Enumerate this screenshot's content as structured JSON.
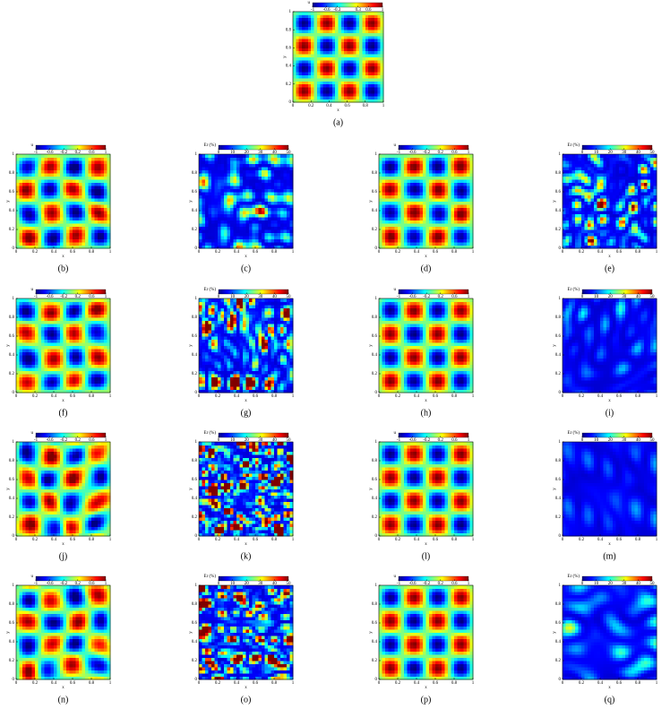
{
  "chart_data": [
    {
      "type": "heatmap",
      "label": "(a)",
      "colorbar_label": "u",
      "clim": [
        -1,
        1
      ],
      "cticks": [
        -1,
        -0.6,
        -0.3,
        0.3,
        0.6,
        1
      ],
      "xlabel": "x",
      "ylabel": "y",
      "xlim": [
        0,
        1
      ],
      "ylim": [
        0,
        1
      ],
      "xticks": [
        0,
        0.2,
        0.4,
        0.6,
        0.8,
        1
      ],
      "yticks": [
        0,
        0.2,
        0.4,
        0.6,
        0.8,
        1
      ]
    },
    {
      "type": "heatmap",
      "label": "(b)",
      "colorbar_label": "u",
      "clim": [
        -1,
        1
      ],
      "cticks": [
        -1,
        -0.6,
        -0.2,
        0.2,
        0.6,
        1
      ],
      "xlabel": "x",
      "ylabel": "y",
      "xlim": [
        0,
        1
      ],
      "ylim": [
        0,
        1
      ],
      "xticks": [
        0,
        0.2,
        0.4,
        0.6,
        0.8,
        1
      ],
      "yticks": [
        0,
        0.2,
        0.4,
        0.6,
        0.8,
        1
      ]
    },
    {
      "type": "heatmap",
      "label": "(c)",
      "colorbar_label": "Er (%)",
      "clim": [
        0,
        50
      ],
      "cticks": [
        0,
        10,
        20,
        30,
        40,
        50
      ],
      "xlabel": "x",
      "ylabel": "y",
      "xlim": [
        0,
        1
      ],
      "ylim": [
        0,
        1
      ],
      "xticks": [
        0,
        0.2,
        0.4,
        0.6,
        0.8,
        1
      ],
      "yticks": [
        0,
        0.2,
        0.4,
        0.6,
        0.8,
        1
      ]
    },
    {
      "type": "heatmap",
      "label": "(d)",
      "colorbar_label": "u",
      "clim": [
        -1,
        1
      ],
      "cticks": [
        -1,
        -0.6,
        -0.2,
        0.2,
        0.6,
        1
      ],
      "xlabel": "x",
      "ylabel": "y",
      "xlim": [
        0,
        1
      ],
      "ylim": [
        0,
        1
      ],
      "xticks": [
        0,
        0.2,
        0.4,
        0.6,
        0.8,
        1
      ],
      "yticks": [
        0,
        0.2,
        0.4,
        0.6,
        0.8,
        1
      ]
    },
    {
      "type": "heatmap",
      "label": "(e)",
      "colorbar_label": "Er (%)",
      "clim": [
        0,
        50
      ],
      "cticks": [
        0,
        10,
        20,
        30,
        40,
        50
      ],
      "xlabel": "x",
      "ylabel": "y",
      "xlim": [
        0,
        1
      ],
      "ylim": [
        0,
        1
      ],
      "xticks": [
        0,
        0.2,
        0.4,
        0.6,
        0.8,
        1
      ],
      "yticks": [
        0,
        0.2,
        0.4,
        0.6,
        0.8,
        1
      ]
    },
    {
      "type": "heatmap",
      "label": "(f)",
      "colorbar_label": "u",
      "clim": [
        -1,
        1
      ],
      "cticks": [
        -1,
        -0.6,
        -0.2,
        0.2,
        0.6,
        1
      ],
      "xlabel": "x",
      "ylabel": "y",
      "xlim": [
        0,
        1
      ],
      "ylim": [
        0,
        1
      ],
      "xticks": [
        0,
        0.2,
        0.4,
        0.6,
        0.8,
        1
      ],
      "yticks": [
        0,
        0.2,
        0.4,
        0.6,
        0.8,
        1
      ]
    },
    {
      "type": "heatmap",
      "label": "(g)",
      "colorbar_label": "Er (%)",
      "clim": [
        0,
        50
      ],
      "cticks": [
        0,
        10,
        20,
        30,
        40,
        50
      ],
      "xlabel": "x",
      "ylabel": "y",
      "xlim": [
        0,
        1
      ],
      "ylim": [
        0,
        1
      ],
      "xticks": [
        0,
        0.2,
        0.4,
        0.6,
        0.8,
        1
      ],
      "yticks": [
        0,
        0.2,
        0.4,
        0.6,
        0.8,
        1
      ]
    },
    {
      "type": "heatmap",
      "label": "(h)",
      "colorbar_label": "u",
      "clim": [
        -1,
        1
      ],
      "cticks": [
        -1,
        -0.6,
        -0.2,
        0.2,
        0.6,
        1
      ],
      "xlabel": "x",
      "ylabel": "y",
      "xlim": [
        0,
        1
      ],
      "ylim": [
        0,
        1
      ],
      "xticks": [
        0,
        0.2,
        0.4,
        0.6,
        0.8,
        1
      ],
      "yticks": [
        0,
        0.2,
        0.4,
        0.6,
        0.8,
        1
      ]
    },
    {
      "type": "heatmap",
      "label": "(i)",
      "colorbar_label": "Er (%)",
      "clim": [
        0,
        50
      ],
      "cticks": [
        0,
        10,
        20,
        30,
        40,
        50
      ],
      "xlabel": "x",
      "ylabel": "y",
      "xlim": [
        0,
        1
      ],
      "ylim": [
        0,
        1
      ],
      "xticks": [
        0,
        0.2,
        0.4,
        0.6,
        0.8,
        1
      ],
      "yticks": [
        0,
        0.2,
        0.4,
        0.6,
        0.8,
        1
      ]
    },
    {
      "type": "heatmap",
      "label": "(j)",
      "colorbar_label": "u",
      "clim": [
        -1,
        1
      ],
      "cticks": [
        -1,
        -0.6,
        -0.2,
        0.2,
        0.6,
        1
      ],
      "xlabel": "x",
      "ylabel": "y",
      "xlim": [
        0,
        1
      ],
      "ylim": [
        0,
        1
      ],
      "xticks": [
        0,
        0.2,
        0.4,
        0.6,
        0.8,
        1
      ],
      "yticks": [
        0,
        0.2,
        0.4,
        0.6,
        0.8,
        1
      ]
    },
    {
      "type": "heatmap",
      "label": "(k)",
      "colorbar_label": "Er (%)",
      "clim": [
        0,
        50
      ],
      "cticks": [
        0,
        10,
        20,
        30,
        40,
        50
      ],
      "xlabel": "x",
      "ylabel": "y",
      "xlim": [
        0,
        1
      ],
      "ylim": [
        0,
        1
      ],
      "xticks": [
        0,
        0.2,
        0.4,
        0.6,
        0.8,
        1
      ],
      "yticks": [
        0,
        0.2,
        0.4,
        0.6,
        0.8,
        1
      ]
    },
    {
      "type": "heatmap",
      "label": "(l)",
      "colorbar_label": "u",
      "clim": [
        -1,
        1
      ],
      "cticks": [
        -1,
        -0.6,
        -0.2,
        0.2,
        0.6,
        1
      ],
      "xlabel": "x",
      "ylabel": "y",
      "xlim": [
        0,
        1
      ],
      "ylim": [
        0,
        1
      ],
      "xticks": [
        0,
        0.2,
        0.4,
        0.6,
        0.8,
        1
      ],
      "yticks": [
        0,
        0.2,
        0.4,
        0.6,
        0.8,
        1
      ]
    },
    {
      "type": "heatmap",
      "label": "(m)",
      "colorbar_label": "Er (%)",
      "clim": [
        0,
        50
      ],
      "cticks": [
        0,
        10,
        20,
        30,
        40,
        50
      ],
      "xlabel": "x",
      "ylabel": "y",
      "xlim": [
        0,
        1
      ],
      "ylim": [
        0,
        1
      ],
      "xticks": [
        0,
        0.2,
        0.4,
        0.6,
        0.8,
        1
      ],
      "yticks": [
        0,
        0.2,
        0.4,
        0.6,
        0.8,
        1
      ]
    },
    {
      "type": "heatmap",
      "label": "(n)",
      "colorbar_label": "u",
      "clim": [
        -1,
        1
      ],
      "cticks": [
        -1,
        -0.6,
        -0.2,
        0.2,
        0.6,
        1
      ],
      "xlabel": "x",
      "ylabel": "y",
      "xlim": [
        0,
        1
      ],
      "ylim": [
        0,
        1
      ],
      "xticks": [
        0,
        0.2,
        0.4,
        0.6,
        0.8,
        1
      ],
      "yticks": [
        0,
        0.2,
        0.4,
        0.6,
        0.8,
        1
      ]
    },
    {
      "type": "heatmap",
      "label": "(o)",
      "colorbar_label": "Er (%)",
      "clim": [
        0,
        50
      ],
      "cticks": [
        0,
        10,
        20,
        30,
        40,
        50
      ],
      "xlabel": "x",
      "ylabel": "y",
      "xlim": [
        0,
        1
      ],
      "ylim": [
        0,
        1
      ],
      "xticks": [
        0,
        0.2,
        0.4,
        0.6,
        0.8,
        1
      ],
      "yticks": [
        0,
        0.2,
        0.4,
        0.6,
        0.8,
        1
      ]
    },
    {
      "type": "heatmap",
      "label": "(p)",
      "colorbar_label": "u",
      "clim": [
        -1,
        1
      ],
      "cticks": [
        -1,
        -0.6,
        -0.2,
        0.2,
        0.6,
        1
      ],
      "xlabel": "x",
      "ylabel": "y",
      "xlim": [
        0,
        1
      ],
      "ylim": [
        0,
        1
      ],
      "xticks": [
        0,
        0.2,
        0.4,
        0.6,
        0.8,
        1
      ],
      "yticks": [
        0,
        0.2,
        0.4,
        0.6,
        0.8,
        1
      ]
    },
    {
      "type": "heatmap",
      "label": "(q)",
      "colorbar_label": "Er (%)",
      "clim": [
        0,
        50
      ],
      "cticks": [
        0,
        10,
        20,
        30,
        40,
        50
      ],
      "xlabel": "x",
      "ylabel": "y",
      "xlim": [
        0,
        1
      ],
      "ylim": [
        0,
        1
      ],
      "xticks": [
        0,
        0.2,
        0.4,
        0.6,
        0.8,
        1
      ],
      "yticks": [
        0,
        0.2,
        0.4,
        0.6,
        0.8,
        1
      ]
    }
  ]
}
